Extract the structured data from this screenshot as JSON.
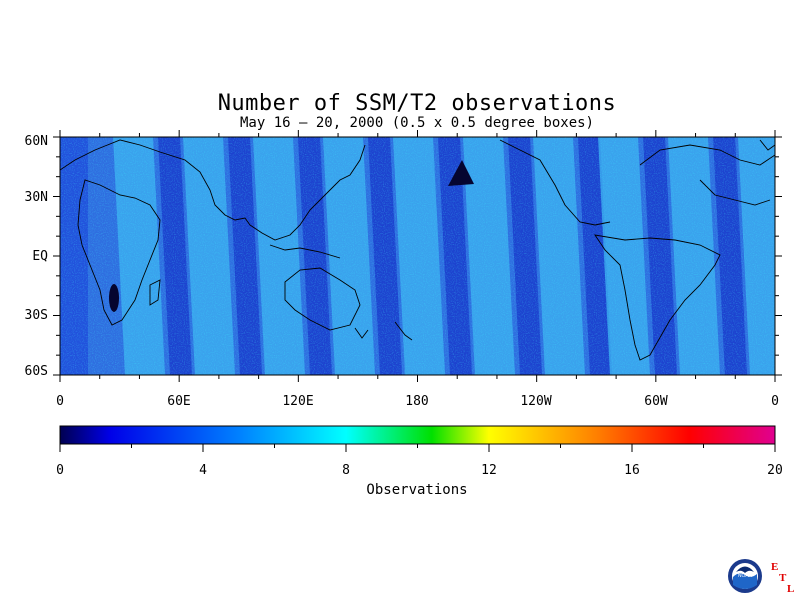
{
  "title": "Number of SSM/T2 observations",
  "subtitle": "May 16 – 20, 2000 (0.5 x 0.5 degree boxes)",
  "map": {
    "lat_labels": [
      "60N",
      "30N",
      "EQ",
      "30S",
      "60S"
    ],
    "lon_labels": [
      "0",
      "60E",
      "120E",
      "180",
      "120W",
      "60W",
      "0"
    ],
    "lat_range": [
      -60,
      60
    ],
    "lon_range": [
      0,
      360
    ]
  },
  "colorbar": {
    "label": "Observations",
    "ticks": [
      "0",
      "4",
      "8",
      "12",
      "16",
      "20"
    ],
    "range": [
      0,
      20
    ],
    "colors": [
      "#000050",
      "#0000e8",
      "#0080ff",
      "#00ffff",
      "#00e000",
      "#ffff00",
      "#ff8000",
      "#ff0000",
      "#e00090"
    ]
  },
  "logo": {
    "text": "NOAA",
    "letters": [
      "E",
      "T",
      "L"
    ],
    "letter_color": "#e00000"
  }
}
